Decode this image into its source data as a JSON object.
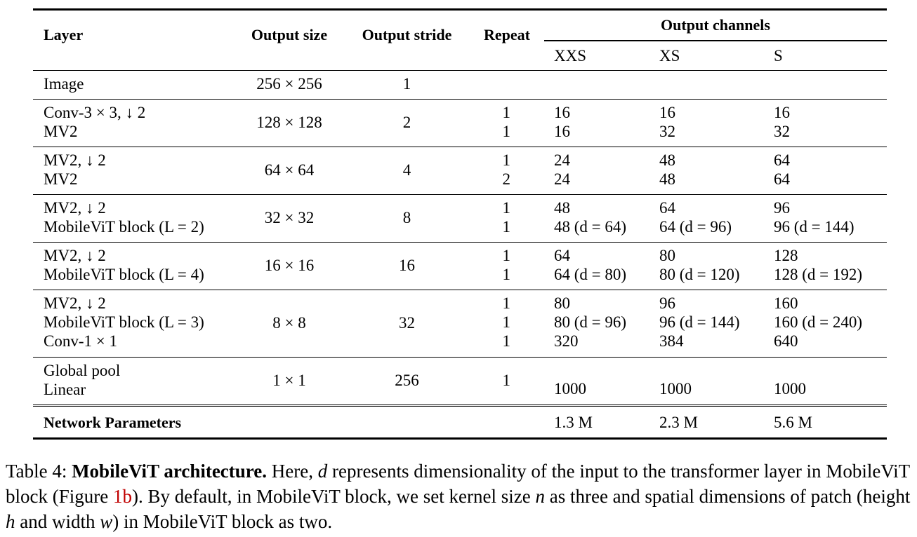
{
  "table": {
    "headers": {
      "layer": "Layer",
      "output_size": "Output size",
      "output_stride": "Output stride",
      "repeat": "Repeat",
      "output_channels": "Output channels",
      "xxs": "XXS",
      "xs": "XS",
      "s": "S"
    },
    "groups": [
      {
        "layers": [
          "Image"
        ],
        "output_size": "256 × 256",
        "output_stride": "1",
        "repeat": [],
        "xxs": [],
        "xs": [],
        "s": []
      },
      {
        "layers": [
          "Conv-3 × 3, ↓ 2",
          "MV2"
        ],
        "output_size": "128 × 128",
        "output_stride": "2",
        "repeat": [
          "1",
          "1"
        ],
        "xxs": [
          "16",
          "16"
        ],
        "xs": [
          "16",
          "32"
        ],
        "s": [
          "16",
          "32"
        ]
      },
      {
        "layers": [
          "MV2, ↓ 2",
          "MV2"
        ],
        "output_size": "64 × 64",
        "output_stride": "4",
        "repeat": [
          "1",
          "2"
        ],
        "xxs": [
          "24",
          "24"
        ],
        "xs": [
          "48",
          "48"
        ],
        "s": [
          "64",
          "64"
        ]
      },
      {
        "layers": [
          "MV2, ↓ 2",
          "MobileViT block (L = 2)"
        ],
        "output_size": "32 × 32",
        "output_stride": "8",
        "repeat": [
          "1",
          "1"
        ],
        "xxs": [
          "48",
          "48 (d = 64)"
        ],
        "xs": [
          "64",
          "64 (d = 96)"
        ],
        "s": [
          "96",
          "96 (d = 144)"
        ]
      },
      {
        "layers": [
          "MV2, ↓ 2",
          "MobileViT block (L = 4)"
        ],
        "output_size": "16 × 16",
        "output_stride": "16",
        "repeat": [
          "1",
          "1"
        ],
        "xxs": [
          "64",
          "64 (d = 80)"
        ],
        "xs": [
          "80",
          "80 (d = 120)"
        ],
        "s": [
          "128",
          "128 (d = 192)"
        ]
      },
      {
        "layers": [
          "MV2, ↓ 2",
          "MobileViT block (L = 3)",
          "Conv-1 × 1"
        ],
        "output_size": "8 × 8",
        "output_stride": "32",
        "repeat": [
          "1",
          "1",
          "1"
        ],
        "xxs": [
          "80",
          "80 (d = 96)",
          "320"
        ],
        "xs": [
          "96",
          "96 (d = 144)",
          "384"
        ],
        "s": [
          "160",
          "160 (d = 240)",
          "640"
        ]
      },
      {
        "layers": [
          "Global pool",
          "Linear"
        ],
        "output_size": "1 × 1",
        "output_stride": "256",
        "repeat": [
          "1"
        ],
        "xxs": [
          "1000"
        ],
        "xs": [
          "1000"
        ],
        "s": [
          "1000"
        ]
      }
    ],
    "params": {
      "label": "Network Parameters",
      "xxs": "1.3 M",
      "xs": "2.3 M",
      "s": "5.6 M"
    }
  },
  "caption": {
    "label": "Table 4:",
    "title": "MobileViT architecture.",
    "t1": "Here,",
    "v_d": "d",
    "t2": "represents dimensionality of the input to the transformer layer in MobileViT block (Figure",
    "ref": "1b",
    "t3": "). By default, in MobileViT block, we set kernel size",
    "v_n": "n",
    "t4": "as three and spatial dimensions of patch (height",
    "v_h": "h",
    "t5": "and width",
    "v_w": "w",
    "t6": ") in MobileViT block as two."
  }
}
